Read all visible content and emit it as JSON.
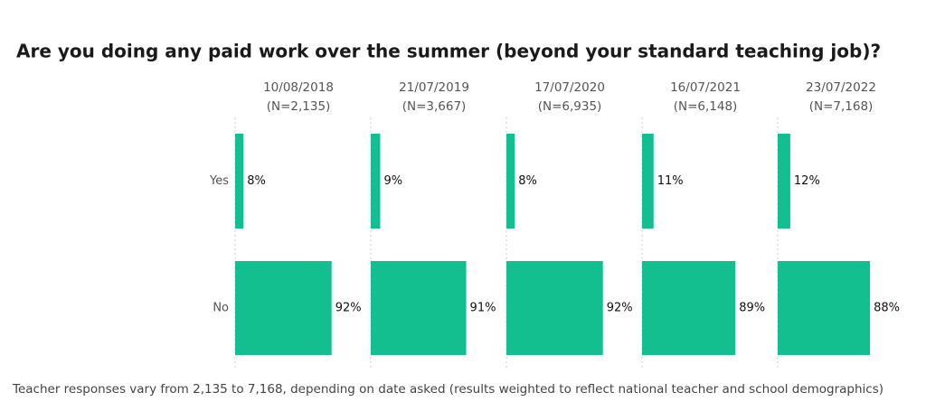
{
  "chart_data": {
    "type": "bar",
    "title": "Are you doing any paid work over the summer (beyond your standard teaching job)?",
    "note": "Teacher responses vary from 2,135 to 7,168, depending on date asked (results weighted to reflect national teacher and school demographics)",
    "categories": [
      "Yes",
      "No"
    ],
    "xlim": [
      0,
      100
    ],
    "series": [
      {
        "name": "10/08/2018",
        "subtitle": "(N=2,135)",
        "color": "#14bf8f",
        "values": [
          8,
          92
        ],
        "value_labels": [
          "8%",
          "92%"
        ]
      },
      {
        "name": "21/07/2019",
        "subtitle": "(N=3,667)",
        "color": "#14bf8f",
        "values": [
          9,
          91
        ],
        "value_labels": [
          "9%",
          "91%"
        ]
      },
      {
        "name": "17/07/2020",
        "subtitle": "(N=6,935)",
        "color": "#14bf8f",
        "values": [
          8,
          92
        ],
        "value_labels": [
          "8%",
          "92%"
        ]
      },
      {
        "name": "16/07/2021",
        "subtitle": "(N=6,148)",
        "color": "#14bf8f",
        "values": [
          11,
          89
        ],
        "value_labels": [
          "11%",
          "89%"
        ]
      },
      {
        "name": "23/07/2022",
        "subtitle": "(N=7,168)",
        "color": "#14bf8f",
        "values": [
          12,
          88
        ],
        "value_labels": [
          "12%",
          "88%"
        ]
      }
    ]
  }
}
